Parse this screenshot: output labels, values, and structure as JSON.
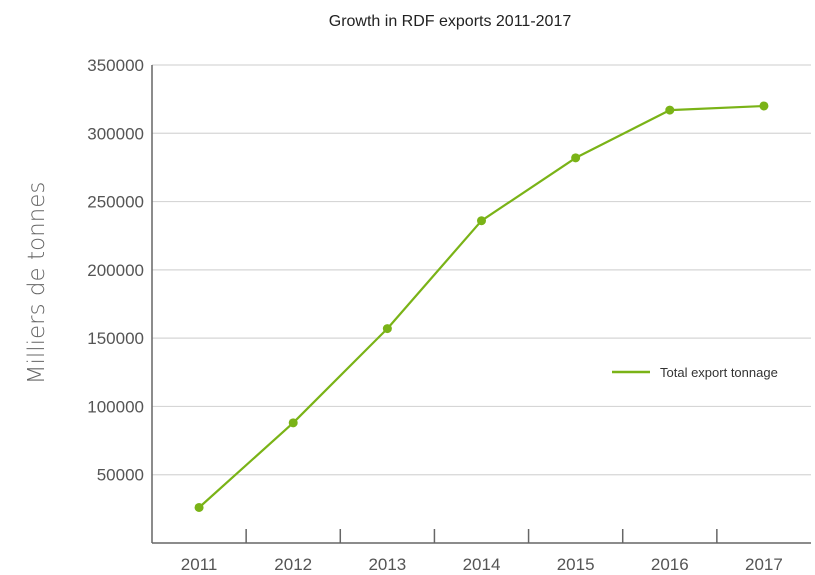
{
  "chart_data": {
    "type": "line",
    "title": "Growth in RDF exports 2011-2017",
    "ylabel": "Milliers de tonnes",
    "xlabel": "",
    "categories": [
      "2011",
      "2012",
      "2013",
      "2014",
      "2015",
      "2016",
      "2017"
    ],
    "y_ticks": [
      "50000",
      "100000",
      "150000",
      "200000",
      "250000",
      "300000",
      "350000"
    ],
    "ylim": [
      0,
      350000
    ],
    "grid": true,
    "legend_position": "right",
    "series": [
      {
        "name": "Total export tonnage",
        "color": "#7ab317",
        "values": [
          26000,
          88000,
          157000,
          236000,
          282000,
          317000,
          320000
        ]
      }
    ]
  }
}
